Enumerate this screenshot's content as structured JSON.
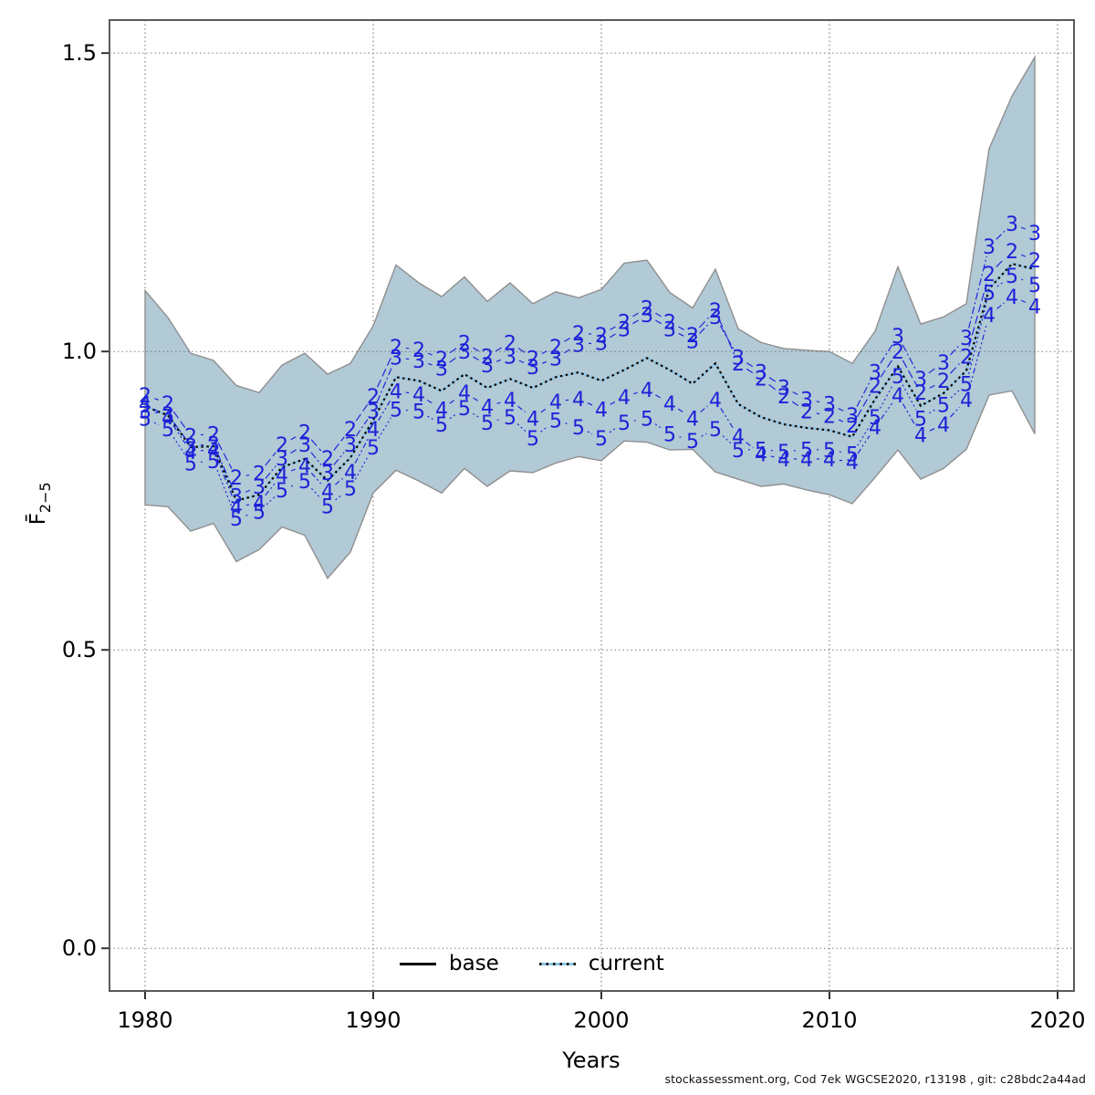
{
  "caption_note": "retrospective / leave-out F plot",
  "chart_data": {
    "type": "line",
    "title": "",
    "xlabel": "Years",
    "ylabel_main": "F̄",
    "ylabel_sub": "2−5",
    "caption": "stockassessment.org, Cod 7ek  WGCSE2020, r13198 , git: c28bdc2a44ad",
    "xlim": [
      1978.44,
      2020.72
    ],
    "ylim": [
      -0.0715,
      1.5553
    ],
    "x_ticks": [
      {
        "value": 1980,
        "label": "1980"
      },
      {
        "value": 1990,
        "label": "1990"
      },
      {
        "value": 2000,
        "label": "2000"
      },
      {
        "value": 2010,
        "label": "2010"
      },
      {
        "value": 2020,
        "label": "2020"
      }
    ],
    "y_ticks": [
      {
        "value": 0.0,
        "label": "0.0"
      },
      {
        "value": 0.5,
        "label": "0.5"
      },
      {
        "value": 1.0,
        "label": "1.0"
      },
      {
        "value": 1.5,
        "label": "1.5"
      }
    ],
    "grid": true,
    "legend_position": "bottom-center",
    "legend": [
      {
        "label": "base"
      },
      {
        "label": "current"
      }
    ],
    "colors": {
      "band_fill": "#b2c9d6",
      "band_edge": "#8f8f8f",
      "run_blue": "#1c22d8",
      "base_black": "#000000",
      "current_lightblue": "#8cc5e3",
      "grid_gray": "#6e6e6e",
      "border_gray": "#5a5a5a"
    },
    "years": [
      1980,
      1981,
      1982,
      1983,
      1984,
      1985,
      1986,
      1987,
      1988,
      1989,
      1990,
      1991,
      1992,
      1993,
      1994,
      1995,
      1996,
      1997,
      1998,
      1999,
      2000,
      2001,
      2002,
      2003,
      2004,
      2005,
      2006,
      2007,
      2008,
      2009,
      2010,
      2011,
      2012,
      2013,
      2014,
      2015,
      2016,
      2017,
      2018,
      2019
    ],
    "band": {
      "lo": [
        0.743,
        0.74,
        0.699,
        0.712,
        0.648,
        0.668,
        0.706,
        0.692,
        0.62,
        0.664,
        0.763,
        0.801,
        0.783,
        0.763,
        0.804,
        0.774,
        0.8,
        0.797,
        0.813,
        0.824,
        0.817,
        0.85,
        0.848,
        0.835,
        0.836,
        0.798,
        0.786,
        0.774,
        0.778,
        0.768,
        0.76,
        0.745,
        0.789,
        0.835,
        0.786,
        0.804,
        0.836,
        0.927,
        0.934,
        0.862
      ],
      "hi": [
        1.102,
        1.057,
        0.997,
        0.985,
        0.943,
        0.931,
        0.977,
        0.997,
        0.962,
        0.98,
        1.043,
        1.145,
        1.115,
        1.092,
        1.125,
        1.084,
        1.115,
        1.08,
        1.1,
        1.09,
        1.104,
        1.148,
        1.153,
        1.099,
        1.073,
        1.138,
        1.038,
        1.015,
        1.005,
        1.002,
        1.0,
        0.98,
        1.034,
        1.142,
        1.046,
        1.058,
        1.08,
        1.34,
        1.428,
        1.493
      ]
    },
    "series": [
      {
        "name": "current",
        "label": "",
        "color": "#8cc5e3",
        "values": [
          0.908,
          0.893,
          0.84,
          0.841,
          0.75,
          0.76,
          0.806,
          0.82,
          0.784,
          0.822,
          0.885,
          0.957,
          0.951,
          0.934,
          0.962,
          0.939,
          0.954,
          0.939,
          0.957,
          0.965,
          0.951,
          0.969,
          0.989,
          0.969,
          0.946,
          0.98,
          0.912,
          0.89,
          0.878,
          0.872,
          0.868,
          0.857,
          0.92,
          0.975,
          0.909,
          0.93,
          0.968,
          1.105,
          1.147,
          1.138
        ]
      },
      {
        "name": "base",
        "label": "",
        "color": "#000000",
        "values": [
          0.908,
          0.893,
          0.84,
          0.841,
          0.75,
          0.76,
          0.806,
          0.82,
          0.784,
          0.822,
          0.885,
          0.957,
          0.951,
          0.934,
          0.962,
          0.939,
          0.954,
          0.939,
          0.957,
          0.965,
          0.951,
          0.969,
          0.989,
          0.969,
          0.946,
          0.98,
          0.912,
          0.89,
          0.878,
          0.872,
          0.868,
          0.857,
          0.92,
          0.975,
          0.909,
          0.93,
          0.968,
          1.105,
          1.147,
          1.138
        ]
      },
      {
        "name": "run2",
        "label": "2",
        "color": "#1c22d8",
        "values": [
          0.927,
          0.913,
          0.859,
          0.862,
          0.789,
          0.796,
          0.844,
          0.865,
          0.821,
          0.87,
          0.925,
          1.008,
          1.003,
          0.988,
          1.015,
          0.992,
          1.015,
          0.989,
          1.008,
          1.031,
          1.028,
          1.05,
          1.073,
          1.05,
          1.028,
          1.069,
          0.98,
          0.955,
          0.925,
          0.9,
          0.892,
          0.876,
          0.943,
          1.0,
          0.931,
          0.951,
          0.992,
          1.13,
          1.168,
          1.153
        ]
      },
      {
        "name": "run3",
        "label": "3",
        "color": "#1c22d8",
        "values": [
          0.9,
          0.895,
          0.842,
          0.845,
          0.758,
          0.774,
          0.821,
          0.844,
          0.797,
          0.844,
          0.9,
          0.99,
          0.985,
          0.972,
          1.0,
          0.977,
          0.992,
          0.974,
          0.989,
          1.012,
          1.015,
          1.038,
          1.061,
          1.038,
          1.018,
          1.058,
          0.99,
          0.966,
          0.94,
          0.92,
          0.912,
          0.893,
          0.966,
          1.026,
          0.954,
          0.982,
          1.023,
          1.176,
          1.214,
          1.199
        ]
      },
      {
        "name": "run4",
        "label": "4",
        "color": "#1c22d8",
        "values": [
          0.912,
          0.89,
          0.832,
          0.836,
          0.74,
          0.746,
          0.794,
          0.809,
          0.766,
          0.798,
          0.87,
          0.934,
          0.928,
          0.903,
          0.931,
          0.908,
          0.919,
          0.888,
          0.916,
          0.921,
          0.903,
          0.924,
          0.936,
          0.913,
          0.888,
          0.919,
          0.858,
          0.828,
          0.82,
          0.82,
          0.82,
          0.815,
          0.873,
          0.927,
          0.86,
          0.878,
          0.919,
          1.061,
          1.092,
          1.076
        ]
      },
      {
        "name": "run5",
        "label": "5",
        "color": "#1c22d8",
        "values": [
          0.888,
          0.87,
          0.813,
          0.817,
          0.72,
          0.732,
          0.768,
          0.783,
          0.741,
          0.771,
          0.84,
          0.903,
          0.9,
          0.878,
          0.905,
          0.881,
          0.89,
          0.855,
          0.885,
          0.873,
          0.855,
          0.881,
          0.888,
          0.862,
          0.85,
          0.87,
          0.835,
          0.836,
          0.832,
          0.836,
          0.835,
          0.828,
          0.89,
          0.959,
          0.888,
          0.911,
          0.946,
          1.099,
          1.127,
          1.112
        ]
      }
    ]
  }
}
